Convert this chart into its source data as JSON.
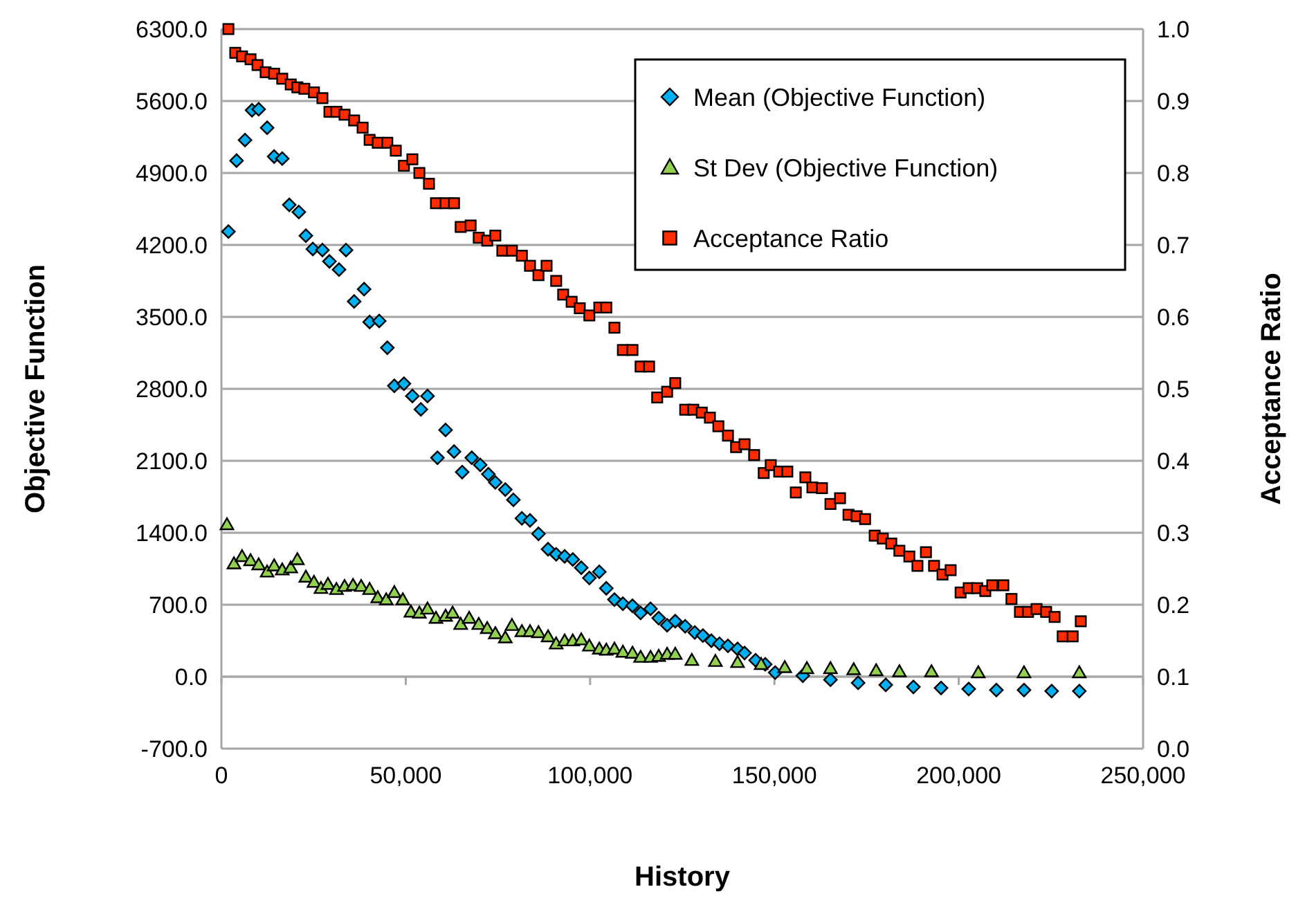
{
  "chart_data": {
    "type": "scatter",
    "xlabel": "History",
    "ylabel": "Objective Function",
    "y2label": "Acceptance Ratio",
    "xlim": [
      0,
      250000
    ],
    "xticks": [
      0,
      {
        "value": 50000,
        "label": "50,000"
      },
      {
        "value": 100000,
        "label": "100,000"
      },
      {
        "value": 150000,
        "label": "150,000"
      },
      {
        "value": 200000,
        "label": "200,000"
      },
      {
        "value": 250000,
        "label": "250,000"
      }
    ],
    "ylim": [
      -700,
      6300
    ],
    "yticks": [
      {
        "value": -700,
        "label": "-700.0"
      },
      {
        "value": 0,
        "label": "0.0"
      },
      {
        "value": 700,
        "label": "700.0"
      },
      {
        "value": 1400,
        "label": "1400.0"
      },
      {
        "value": 2100,
        "label": "2100.0"
      },
      {
        "value": 2800,
        "label": "2800.0"
      },
      {
        "value": 3500,
        "label": "3500.0"
      },
      {
        "value": 4200,
        "label": "4200.0"
      },
      {
        "value": 4900,
        "label": "4900.0"
      },
      {
        "value": 5600,
        "label": "5600.0"
      },
      {
        "value": 6300,
        "label": "6300.0"
      }
    ],
    "y2lim": [
      0,
      1
    ],
    "y2ticks": [
      {
        "value": 0,
        "label": "0.0"
      },
      {
        "value": 0.1,
        "label": "0.1"
      },
      {
        "value": 0.2,
        "label": "0.2"
      },
      {
        "value": 0.3,
        "label": "0.3"
      },
      {
        "value": 0.4,
        "label": "0.4"
      },
      {
        "value": 0.5,
        "label": "0.5"
      },
      {
        "value": 0.6,
        "label": "0.6"
      },
      {
        "value": 0.7,
        "label": "0.7"
      },
      {
        "value": 0.8,
        "label": "0.8"
      },
      {
        "value": 0.9,
        "label": "0.9"
      },
      {
        "value": 1,
        "label": "1.0"
      }
    ],
    "grid": "y",
    "legend": "top right",
    "series": [
      {
        "name": "Mean (Objective Function)",
        "color": "#00b0f0",
        "marker": "diamond",
        "x": [
          1900,
          4100,
          6400,
          8300,
          10100,
          12400,
          14300,
          16500,
          18400,
          21000,
          22900,
          24800,
          27400,
          29300,
          31900,
          33800,
          36000,
          38700,
          40200,
          42800,
          45000,
          46900,
          49500,
          51800,
          54100,
          55900,
          58600,
          60800,
          63100,
          65300,
          67900,
          70200,
          72400,
          74300,
          77000,
          79200,
          81500,
          83700,
          86000,
          88600,
          90800,
          93100,
          95300,
          97600,
          99800,
          102500,
          104400,
          106600,
          108900,
          111500,
          113700,
          116400,
          118600,
          120900,
          123100,
          125800,
          128400,
          130600,
          132900,
          135100,
          137400,
          140000,
          141900,
          144900,
          147500,
          150200,
          157700,
          165200,
          172700,
          180200,
          187700,
          195200,
          202700,
          210200,
          217700,
          225200,
          232700
        ],
        "values": [
          4330,
          5020,
          5220,
          5510,
          5520,
          5340,
          5060,
          5040,
          4590,
          4520,
          4290,
          4160,
          4150,
          4040,
          3960,
          4150,
          3650,
          3770,
          3450,
          3460,
          3200,
          2830,
          2850,
          2730,
          2600,
          2730,
          2130,
          2400,
          2190,
          1990,
          2130,
          2060,
          1970,
          1890,
          1820,
          1720,
          1540,
          1520,
          1390,
          1240,
          1190,
          1170,
          1140,
          1060,
          960,
          1020,
          860,
          750,
          710,
          690,
          620,
          660,
          570,
          500,
          540,
          490,
          430,
          400,
          350,
          320,
          300,
          270,
          230,
          160,
          120,
          40,
          10,
          -30,
          -60,
          -80,
          -100,
          -110,
          -120,
          -130,
          -130,
          -140,
          -140
        ]
      },
      {
        "name": "St Dev (Objective Function)",
        "color": "#92d050",
        "marker": "triangle",
        "x": [
          1500,
          3400,
          5600,
          7900,
          10100,
          12400,
          14300,
          16500,
          18800,
          20600,
          22900,
          25100,
          27000,
          28900,
          31200,
          33400,
          35700,
          37900,
          40200,
          42400,
          44700,
          46900,
          49200,
          51400,
          53700,
          55900,
          58200,
          60800,
          62700,
          64900,
          67200,
          69800,
          72100,
          74300,
          77000,
          78800,
          81500,
          83700,
          86000,
          88600,
          90800,
          93100,
          95300,
          97600,
          99800,
          102500,
          104400,
          106600,
          108900,
          111500,
          113700,
          116400,
          118600,
          120900,
          123100,
          127600,
          134000,
          140000,
          146400,
          152800,
          158800,
          165200,
          171500,
          177600,
          183900,
          192600,
          205300,
          217700,
          232700
        ],
        "values": [
          1480,
          1100,
          1170,
          1130,
          1090,
          1020,
          1080,
          1040,
          1060,
          1140,
          970,
          920,
          860,
          900,
          850,
          880,
          890,
          880,
          850,
          770,
          750,
          820,
          750,
          630,
          620,
          660,
          570,
          590,
          620,
          510,
          570,
          510,
          470,
          420,
          380,
          500,
          440,
          440,
          430,
          390,
          320,
          350,
          350,
          360,
          300,
          270,
          260,
          270,
          240,
          230,
          190,
          190,
          200,
          220,
          220,
          160,
          150,
          140,
          120,
          90,
          80,
          80,
          70,
          60,
          50,
          50,
          40,
          40,
          40
        ]
      },
      {
        "name": "Acceptance Ratio",
        "color": "#ff2b00",
        "marker": "square",
        "axis": "y2",
        "x": [
          1900,
          3750,
          5600,
          7900,
          9800,
          12000,
          14300,
          16500,
          18800,
          20600,
          22500,
          25100,
          27400,
          29300,
          31200,
          33400,
          36000,
          38300,
          40200,
          42400,
          45000,
          47300,
          49500,
          51800,
          53700,
          56300,
          58200,
          60800,
          63100,
          64900,
          67600,
          69800,
          72100,
          74300,
          76200,
          78800,
          81500,
          83700,
          86000,
          88200,
          90800,
          92700,
          95000,
          97200,
          99800,
          102500,
          104400,
          106600,
          108900,
          111500,
          113700,
          116000,
          118200,
          120900,
          123100,
          125800,
          128000,
          130300,
          132500,
          134800,
          137400,
          139600,
          141900,
          144500,
          147100,
          149000,
          151300,
          153500,
          155800,
          158400,
          160300,
          162900,
          165200,
          167800,
          170100,
          172300,
          174600,
          177200,
          179400,
          181700,
          183900,
          186600,
          188800,
          191100,
          193300,
          195600,
          197800,
          200500,
          202700,
          205000,
          207200,
          209100,
          212100,
          214300,
          216600,
          218800,
          221100,
          223700,
          226000,
          228200,
          230900,
          233100
        ],
        "values": [
          1.0,
          0.967,
          0.962,
          0.958,
          0.95,
          0.94,
          0.938,
          0.931,
          0.923,
          0.919,
          0.917,
          0.912,
          0.904,
          0.885,
          0.885,
          0.881,
          0.873,
          0.863,
          0.846,
          0.842,
          0.842,
          0.831,
          0.81,
          0.819,
          0.8,
          0.785,
          0.758,
          0.758,
          0.758,
          0.725,
          0.727,
          0.71,
          0.706,
          0.713,
          0.692,
          0.692,
          0.685,
          0.671,
          0.658,
          0.671,
          0.65,
          0.631,
          0.621,
          0.612,
          0.602,
          0.613,
          0.613,
          0.585,
          0.554,
          0.554,
          0.531,
          0.531,
          0.488,
          0.496,
          0.508,
          0.471,
          0.471,
          0.467,
          0.46,
          0.448,
          0.435,
          0.419,
          0.423,
          0.408,
          0.383,
          0.394,
          0.385,
          0.385,
          0.356,
          0.377,
          0.363,
          0.362,
          0.34,
          0.348,
          0.325,
          0.323,
          0.319,
          0.296,
          0.292,
          0.285,
          0.275,
          0.267,
          0.254,
          0.273,
          0.254,
          0.242,
          0.248,
          0.217,
          0.223,
          0.223,
          0.219,
          0.227,
          0.227,
          0.208,
          0.19,
          0.19,
          0.194,
          0.19,
          0.183,
          0.156,
          0.156,
          0.177
        ]
      }
    ]
  }
}
